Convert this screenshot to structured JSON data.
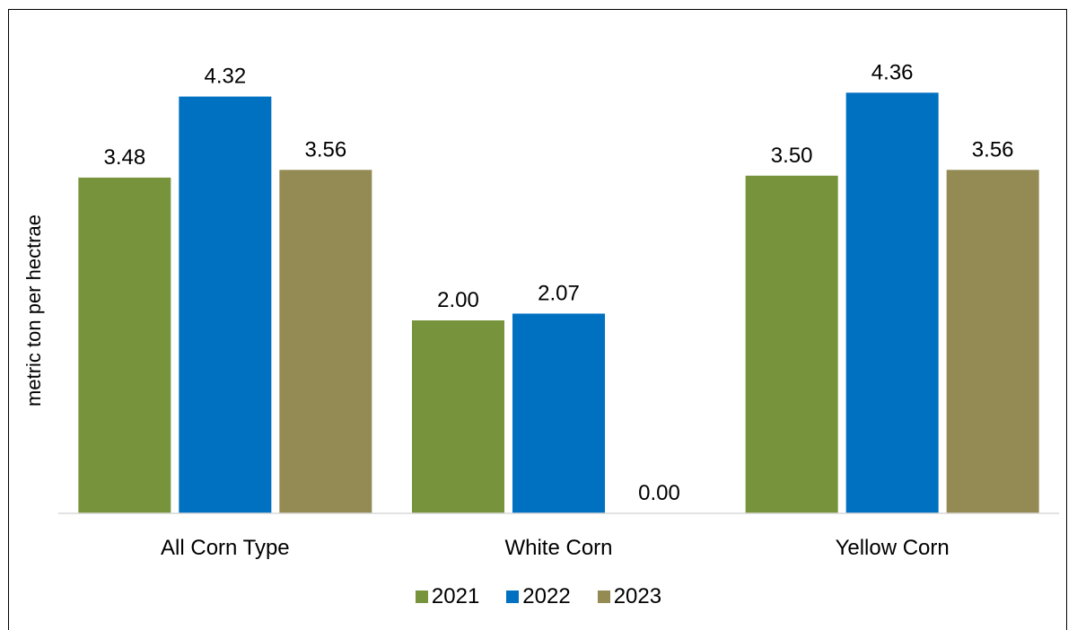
{
  "chart_data": {
    "type": "bar",
    "ylabel": "metric ton per hectrae",
    "ylim": [
      0,
      5
    ],
    "categories": [
      "All Corn Type",
      "White Corn",
      "Yellow Corn"
    ],
    "series": [
      {
        "name": "2021",
        "color": "#77933c",
        "values": [
          3.48,
          2.0,
          3.5
        ],
        "labels": [
          "3.48",
          "2.00",
          "3.50"
        ]
      },
      {
        "name": "2022",
        "color": "#0070c0",
        "values": [
          4.32,
          2.07,
          4.36
        ],
        "labels": [
          "4.32",
          "2.07",
          "4.36"
        ]
      },
      {
        "name": "2023",
        "color": "#948a54",
        "values": [
          3.56,
          0.0,
          3.56
        ],
        "labels": [
          "3.56",
          "0.00",
          "3.56"
        ]
      }
    ],
    "legend": "bottom",
    "grid": false
  }
}
